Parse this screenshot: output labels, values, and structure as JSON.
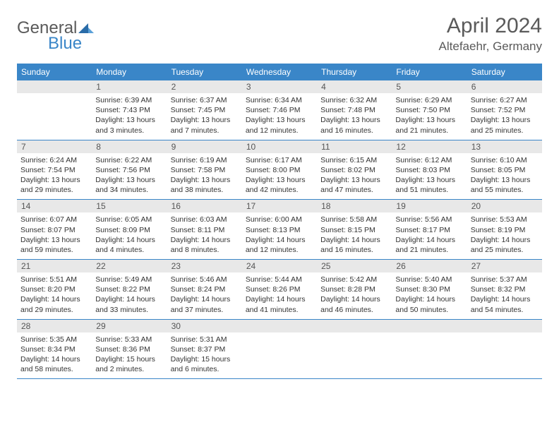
{
  "logo": {
    "text1": "General",
    "text2": "Blue"
  },
  "title": "April 2024",
  "location": "Altefaehr, Germany",
  "colors": {
    "header_bg": "#3a86c8",
    "header_text": "#ffffff",
    "daynum_bg": "#e8e8e8",
    "daynum_text": "#555555",
    "body_text": "#333333",
    "row_border": "#3a86c8"
  },
  "weekdays": [
    "Sunday",
    "Monday",
    "Tuesday",
    "Wednesday",
    "Thursday",
    "Friday",
    "Saturday"
  ],
  "weeks": [
    [
      {
        "day": "",
        "sunrise": "",
        "sunset": "",
        "daylight": ""
      },
      {
        "day": "1",
        "sunrise": "Sunrise: 6:39 AM",
        "sunset": "Sunset: 7:43 PM",
        "daylight": "Daylight: 13 hours and 3 minutes."
      },
      {
        "day": "2",
        "sunrise": "Sunrise: 6:37 AM",
        "sunset": "Sunset: 7:45 PM",
        "daylight": "Daylight: 13 hours and 7 minutes."
      },
      {
        "day": "3",
        "sunrise": "Sunrise: 6:34 AM",
        "sunset": "Sunset: 7:46 PM",
        "daylight": "Daylight: 13 hours and 12 minutes."
      },
      {
        "day": "4",
        "sunrise": "Sunrise: 6:32 AM",
        "sunset": "Sunset: 7:48 PM",
        "daylight": "Daylight: 13 hours and 16 minutes."
      },
      {
        "day": "5",
        "sunrise": "Sunrise: 6:29 AM",
        "sunset": "Sunset: 7:50 PM",
        "daylight": "Daylight: 13 hours and 21 minutes."
      },
      {
        "day": "6",
        "sunrise": "Sunrise: 6:27 AM",
        "sunset": "Sunset: 7:52 PM",
        "daylight": "Daylight: 13 hours and 25 minutes."
      }
    ],
    [
      {
        "day": "7",
        "sunrise": "Sunrise: 6:24 AM",
        "sunset": "Sunset: 7:54 PM",
        "daylight": "Daylight: 13 hours and 29 minutes."
      },
      {
        "day": "8",
        "sunrise": "Sunrise: 6:22 AM",
        "sunset": "Sunset: 7:56 PM",
        "daylight": "Daylight: 13 hours and 34 minutes."
      },
      {
        "day": "9",
        "sunrise": "Sunrise: 6:19 AM",
        "sunset": "Sunset: 7:58 PM",
        "daylight": "Daylight: 13 hours and 38 minutes."
      },
      {
        "day": "10",
        "sunrise": "Sunrise: 6:17 AM",
        "sunset": "Sunset: 8:00 PM",
        "daylight": "Daylight: 13 hours and 42 minutes."
      },
      {
        "day": "11",
        "sunrise": "Sunrise: 6:15 AM",
        "sunset": "Sunset: 8:02 PM",
        "daylight": "Daylight: 13 hours and 47 minutes."
      },
      {
        "day": "12",
        "sunrise": "Sunrise: 6:12 AM",
        "sunset": "Sunset: 8:03 PM",
        "daylight": "Daylight: 13 hours and 51 minutes."
      },
      {
        "day": "13",
        "sunrise": "Sunrise: 6:10 AM",
        "sunset": "Sunset: 8:05 PM",
        "daylight": "Daylight: 13 hours and 55 minutes."
      }
    ],
    [
      {
        "day": "14",
        "sunrise": "Sunrise: 6:07 AM",
        "sunset": "Sunset: 8:07 PM",
        "daylight": "Daylight: 13 hours and 59 minutes."
      },
      {
        "day": "15",
        "sunrise": "Sunrise: 6:05 AM",
        "sunset": "Sunset: 8:09 PM",
        "daylight": "Daylight: 14 hours and 4 minutes."
      },
      {
        "day": "16",
        "sunrise": "Sunrise: 6:03 AM",
        "sunset": "Sunset: 8:11 PM",
        "daylight": "Daylight: 14 hours and 8 minutes."
      },
      {
        "day": "17",
        "sunrise": "Sunrise: 6:00 AM",
        "sunset": "Sunset: 8:13 PM",
        "daylight": "Daylight: 14 hours and 12 minutes."
      },
      {
        "day": "18",
        "sunrise": "Sunrise: 5:58 AM",
        "sunset": "Sunset: 8:15 PM",
        "daylight": "Daylight: 14 hours and 16 minutes."
      },
      {
        "day": "19",
        "sunrise": "Sunrise: 5:56 AM",
        "sunset": "Sunset: 8:17 PM",
        "daylight": "Daylight: 14 hours and 21 minutes."
      },
      {
        "day": "20",
        "sunrise": "Sunrise: 5:53 AM",
        "sunset": "Sunset: 8:19 PM",
        "daylight": "Daylight: 14 hours and 25 minutes."
      }
    ],
    [
      {
        "day": "21",
        "sunrise": "Sunrise: 5:51 AM",
        "sunset": "Sunset: 8:20 PM",
        "daylight": "Daylight: 14 hours and 29 minutes."
      },
      {
        "day": "22",
        "sunrise": "Sunrise: 5:49 AM",
        "sunset": "Sunset: 8:22 PM",
        "daylight": "Daylight: 14 hours and 33 minutes."
      },
      {
        "day": "23",
        "sunrise": "Sunrise: 5:46 AM",
        "sunset": "Sunset: 8:24 PM",
        "daylight": "Daylight: 14 hours and 37 minutes."
      },
      {
        "day": "24",
        "sunrise": "Sunrise: 5:44 AM",
        "sunset": "Sunset: 8:26 PM",
        "daylight": "Daylight: 14 hours and 41 minutes."
      },
      {
        "day": "25",
        "sunrise": "Sunrise: 5:42 AM",
        "sunset": "Sunset: 8:28 PM",
        "daylight": "Daylight: 14 hours and 46 minutes."
      },
      {
        "day": "26",
        "sunrise": "Sunrise: 5:40 AM",
        "sunset": "Sunset: 8:30 PM",
        "daylight": "Daylight: 14 hours and 50 minutes."
      },
      {
        "day": "27",
        "sunrise": "Sunrise: 5:37 AM",
        "sunset": "Sunset: 8:32 PM",
        "daylight": "Daylight: 14 hours and 54 minutes."
      }
    ],
    [
      {
        "day": "28",
        "sunrise": "Sunrise: 5:35 AM",
        "sunset": "Sunset: 8:34 PM",
        "daylight": "Daylight: 14 hours and 58 minutes."
      },
      {
        "day": "29",
        "sunrise": "Sunrise: 5:33 AM",
        "sunset": "Sunset: 8:36 PM",
        "daylight": "Daylight: 15 hours and 2 minutes."
      },
      {
        "day": "30",
        "sunrise": "Sunrise: 5:31 AM",
        "sunset": "Sunset: 8:37 PM",
        "daylight": "Daylight: 15 hours and 6 minutes."
      },
      {
        "day": "",
        "sunrise": "",
        "sunset": "",
        "daylight": ""
      },
      {
        "day": "",
        "sunrise": "",
        "sunset": "",
        "daylight": ""
      },
      {
        "day": "",
        "sunrise": "",
        "sunset": "",
        "daylight": ""
      },
      {
        "day": "",
        "sunrise": "",
        "sunset": "",
        "daylight": ""
      }
    ]
  ]
}
